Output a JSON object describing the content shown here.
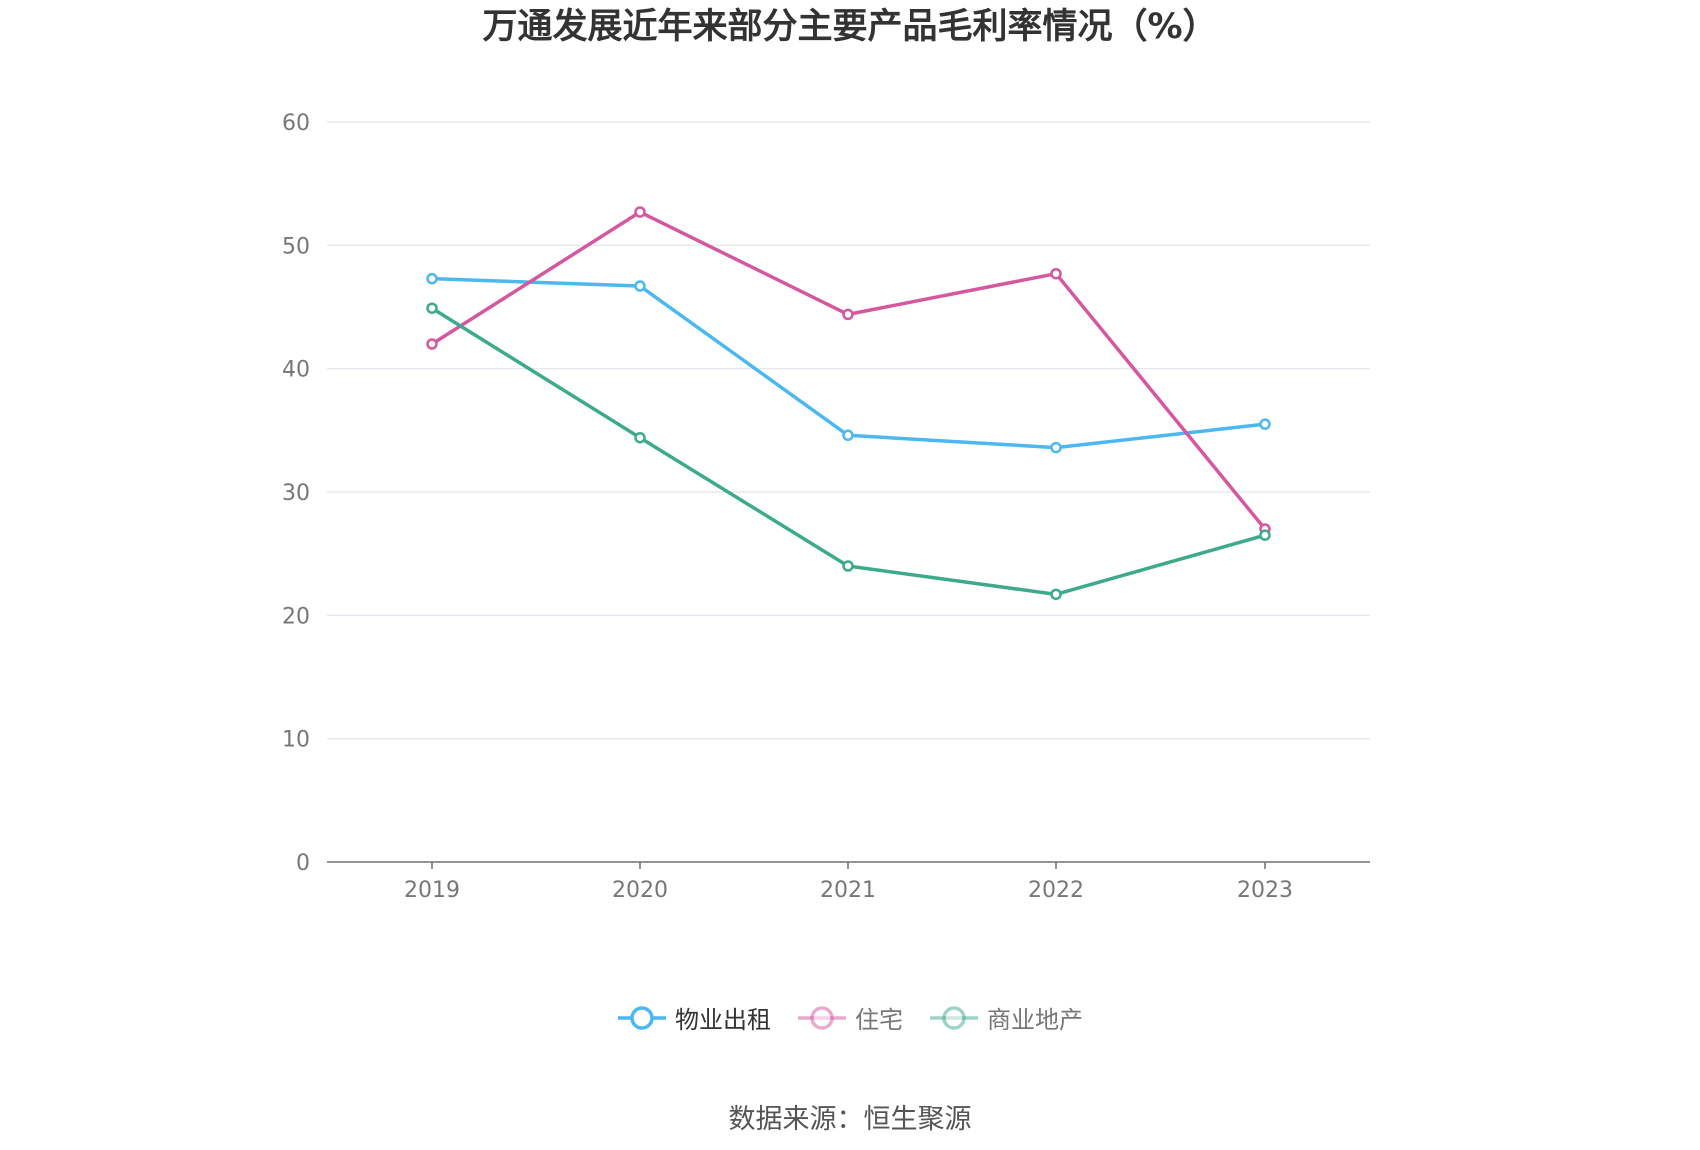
{
  "chart_data": {
    "type": "line",
    "title": "万通发展近年来部分主要产品毛利率情况（%）",
    "xlabel": "",
    "ylabel": "",
    "x": [
      "2019",
      "2020",
      "2021",
      "2022",
      "2023"
    ],
    "ylim": [
      0,
      60
    ],
    "yticks": [
      0,
      10,
      20,
      30,
      40,
      50,
      60
    ],
    "grid": true,
    "legend_position": "bottom",
    "series": [
      {
        "name": "物业出租",
        "color": "#4cb8f0",
        "values": [
          47.3,
          46.7,
          34.6,
          33.6,
          35.5
        ]
      },
      {
        "name": "住宅",
        "color": "#d4579f",
        "values": [
          42.0,
          52.7,
          44.4,
          47.7,
          27.0
        ]
      },
      {
        "name": "商业地产",
        "color": "#3daa8c",
        "values": [
          44.9,
          34.4,
          24.0,
          21.7,
          26.5
        ]
      }
    ]
  },
  "source_text": "数据来源：恒生聚源"
}
